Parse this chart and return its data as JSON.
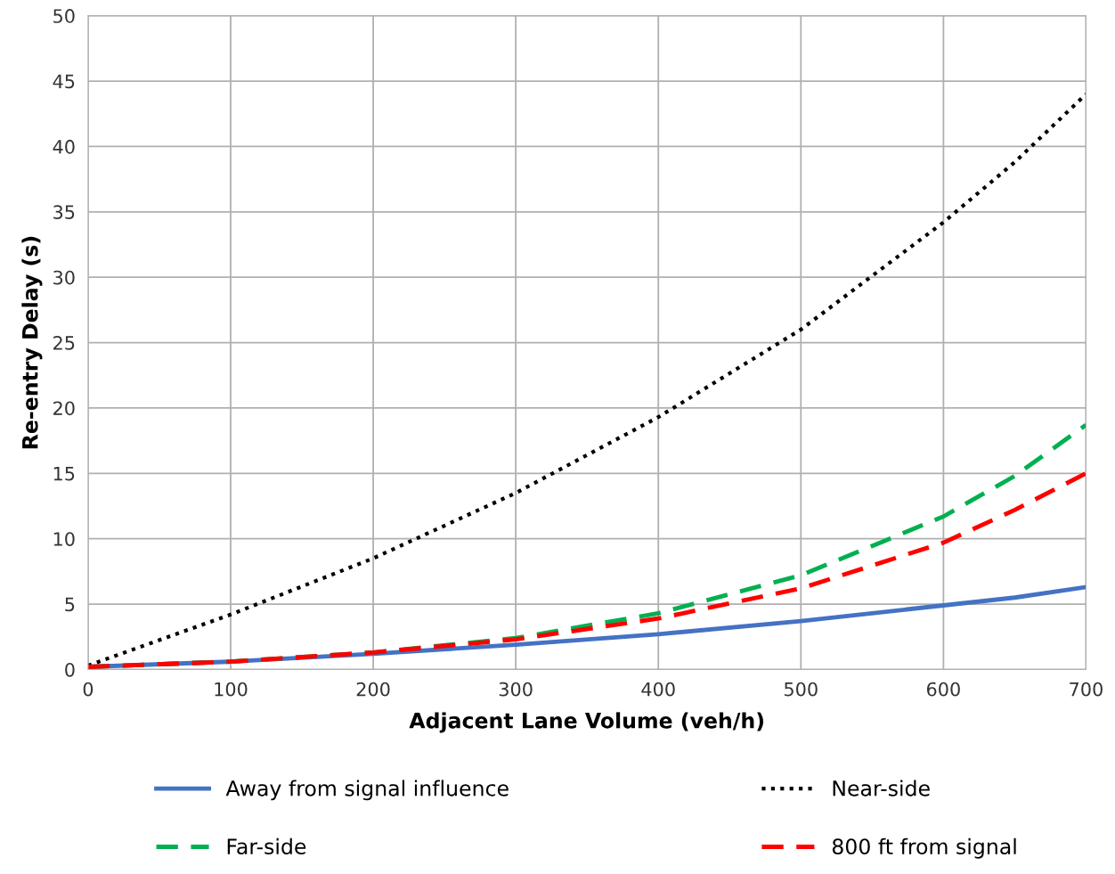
{
  "chart_data": {
    "type": "line",
    "xlabel": "Adjacent Lane Volume (veh/h)",
    "ylabel": "Re-entry Delay (s)",
    "x": [
      0,
      100,
      200,
      300,
      400,
      500,
      600,
      650,
      700
    ],
    "xlim": [
      0,
      700
    ],
    "xticks": [
      0,
      100,
      200,
      300,
      400,
      500,
      600,
      700
    ],
    "ylim": [
      0,
      50
    ],
    "yticks": [
      0,
      5,
      10,
      15,
      20,
      25,
      30,
      35,
      40,
      45,
      50
    ],
    "grid": true,
    "legend": "bottom",
    "series": [
      {
        "name": "Away from signal influence",
        "color": "#4472c4",
        "line_style": "solid",
        "values": [
          0.2,
          0.6,
          1.2,
          1.9,
          2.7,
          3.7,
          4.9,
          5.5,
          6.3
        ]
      },
      {
        "name": "Near-side",
        "color": "#000000",
        "line_style": "dotted",
        "values": [
          0.3,
          4.2,
          8.5,
          13.5,
          19.3,
          26,
          34.2,
          38.8,
          44
        ]
      },
      {
        "name": "Far-side",
        "color": "#00b050",
        "line_style": "dashed",
        "values": [
          0.2,
          0.6,
          1.3,
          2.4,
          4.3,
          7.2,
          11.7,
          14.8,
          18.7
        ]
      },
      {
        "name": "800 ft from signal",
        "color": "#ff0000",
        "line_style": "dashed",
        "values": [
          0.2,
          0.6,
          1.3,
          2.3,
          3.9,
          6.2,
          9.7,
          12.2,
          15
        ]
      }
    ]
  }
}
